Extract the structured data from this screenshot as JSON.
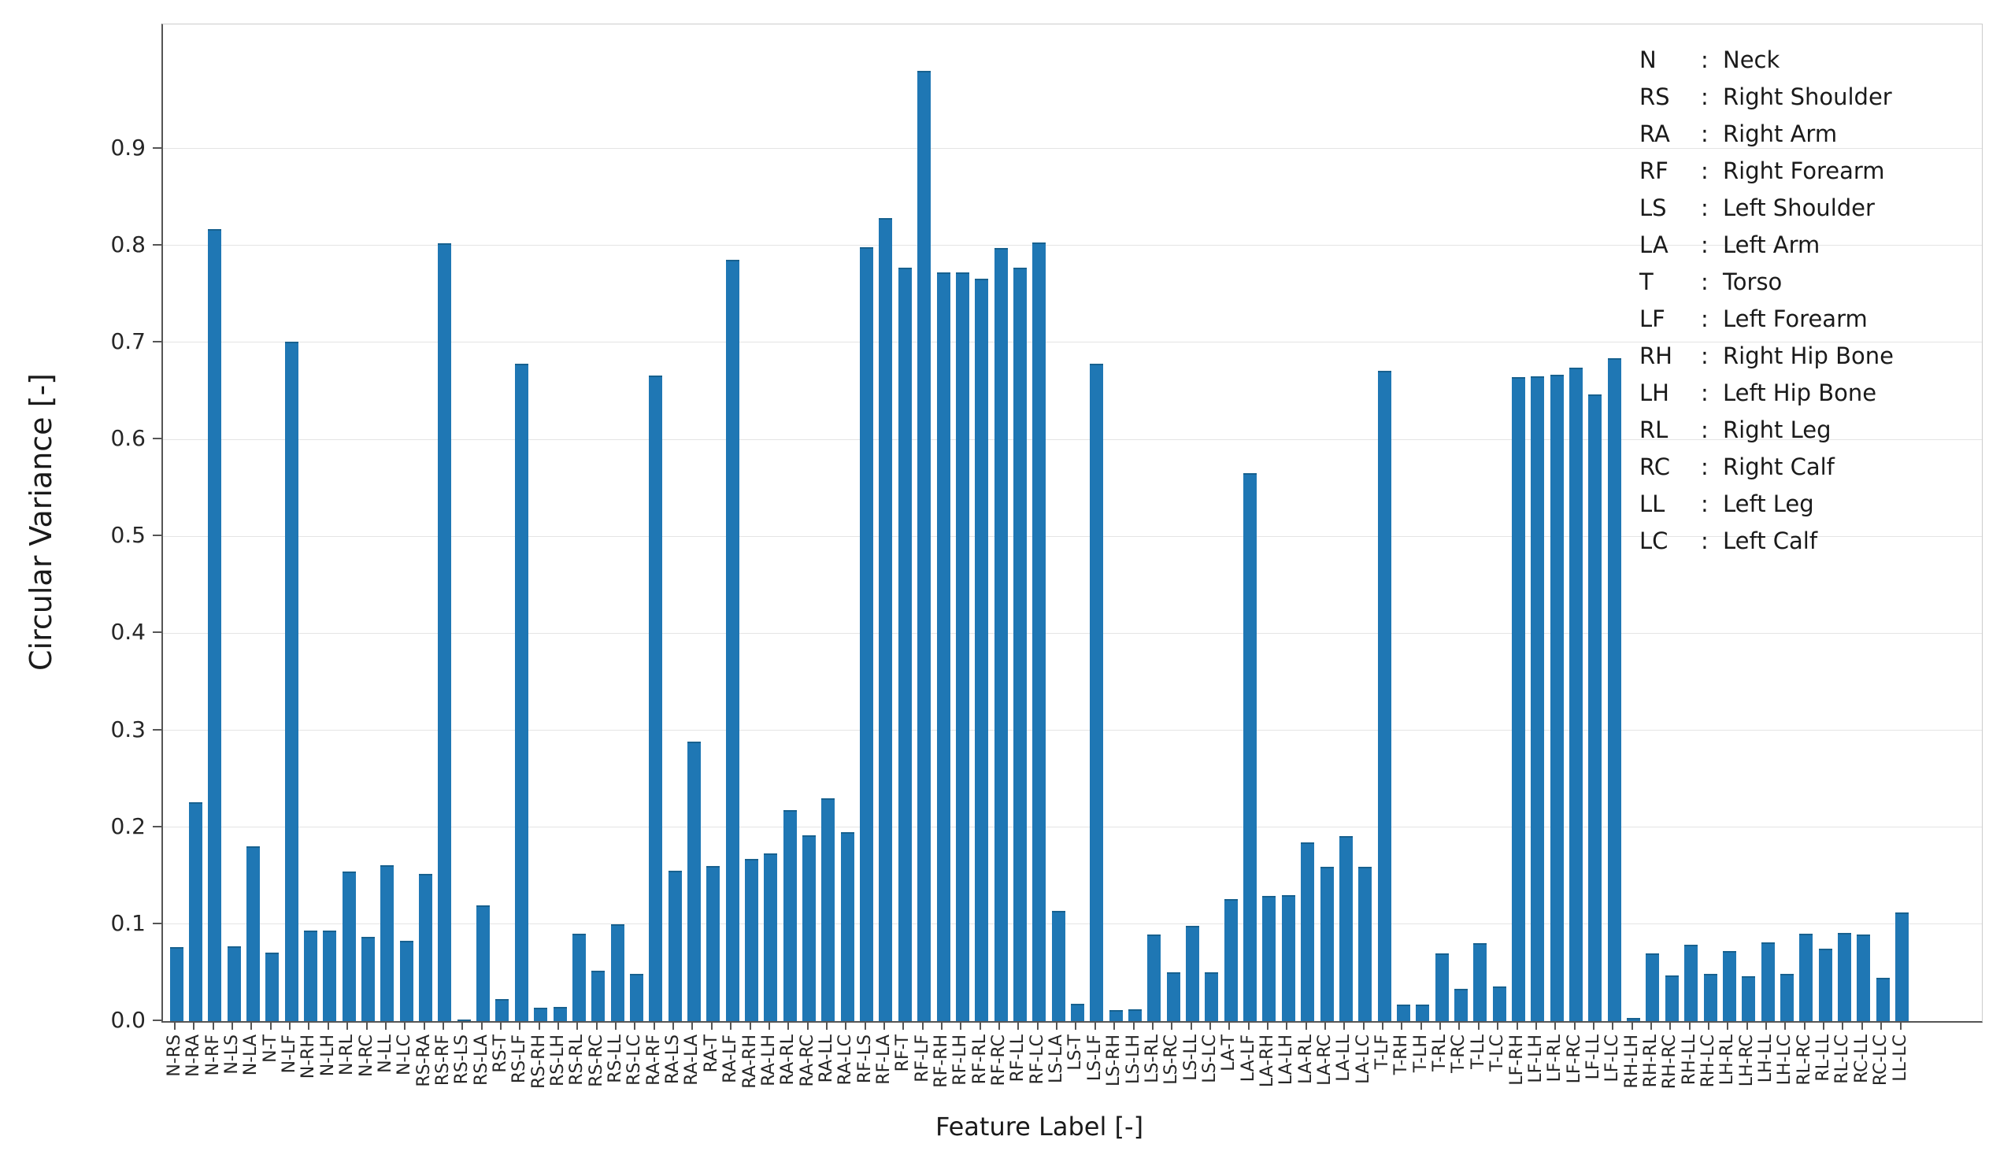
{
  "figure": {
    "title": "",
    "bar_color": "#1f77b4",
    "grid_color": "#e4e4e4",
    "ytick_labels": [
      "0.0",
      "0.1",
      "0.2",
      "0.3",
      "0.4",
      "0.5",
      "0.6",
      "0.7",
      "0.8",
      "0.9"
    ]
  },
  "legend": {
    "entries": [
      {
        "abbr": "N",
        "colon": ":",
        "name": "Neck"
      },
      {
        "abbr": "RS",
        "colon": ":",
        "name": "Right Shoulder"
      },
      {
        "abbr": "RA",
        "colon": ":",
        "name": "Right Arm"
      },
      {
        "abbr": "RF",
        "colon": ":",
        "name": "Right Forearm"
      },
      {
        "abbr": "LS",
        "colon": ":",
        "name": "Left Shoulder"
      },
      {
        "abbr": "LA",
        "colon": ":",
        "name": "Left Arm"
      },
      {
        "abbr": "T",
        "colon": ":",
        "name": "Torso"
      },
      {
        "abbr": "LF",
        "colon": ":",
        "name": "Left Forearm"
      },
      {
        "abbr": "RH",
        "colon": ":",
        "name": "Right Hip Bone"
      },
      {
        "abbr": "LH",
        "colon": ":",
        "name": "Left Hip Bone"
      },
      {
        "abbr": "RL",
        "colon": ":",
        "name": "Right Leg"
      },
      {
        "abbr": "RC",
        "colon": ":",
        "name": "Right Calf"
      },
      {
        "abbr": "LL",
        "colon": ":",
        "name": "Left Leg"
      },
      {
        "abbr": "LC",
        "colon": ":",
        "name": "Left Calf"
      }
    ]
  },
  "chart_data": {
    "type": "bar",
    "title": "",
    "xlabel": "Feature Label [-]",
    "ylabel": "Circular Variance [-]",
    "ylim": [
      0,
      1.028
    ],
    "ytick_step": 0.1,
    "grid": true,
    "legend_position": "upper right (text only, inside axes)",
    "categories": [
      "N-RS",
      "N-RA",
      "N-RF",
      "N-LS",
      "N-LA",
      "N-T",
      "N-LF",
      "N-RH",
      "N-LH",
      "N-RL",
      "N-RC",
      "N-LL",
      "N-LC",
      "RS-RA",
      "RS-RF",
      "RS-LS",
      "RS-LA",
      "RS-T",
      "RS-LF",
      "RS-RH",
      "RS-LH",
      "RS-RL",
      "RS-RC",
      "RS-LL",
      "RS-LC",
      "RA-RF",
      "RA-LS",
      "RA-LA",
      "RA-T",
      "RA-LF",
      "RA-RH",
      "RA-LH",
      "RA-RL",
      "RA-RC",
      "RA-LL",
      "RA-LC",
      "RF-LS",
      "RF-LA",
      "RF-T",
      "RF-LF",
      "RF-RH",
      "RF-LH",
      "RF-RL",
      "RF-RC",
      "RF-LL",
      "RF-LC",
      "LS-LA",
      "LS-T",
      "LS-LF",
      "LS-RH",
      "LS-LH",
      "LS-RL",
      "LS-RC",
      "LS-LL",
      "LS-LC",
      "LA-T",
      "LA-LF",
      "LA-RH",
      "LA-LH",
      "LA-RL",
      "LA-RC",
      "LA-LL",
      "LA-LC",
      "T-LF",
      "T-RH",
      "T-LH",
      "T-RL",
      "T-RC",
      "T-LL",
      "T-LC",
      "LF-RH",
      "LF-LH",
      "LF-RL",
      "LF-RC",
      "LF-LL",
      "LF-LC",
      "RH-LH",
      "RH-RL",
      "RH-RC",
      "RH-LL",
      "RH-LC",
      "LH-RL",
      "LH-RC",
      "LH-LL",
      "LH-LC",
      "RL-RC",
      "RL-LL",
      "RL-LC",
      "RC-LL",
      "RC-LC",
      "LL-LC"
    ],
    "values": [
      0.076,
      0.226,
      0.817,
      0.077,
      0.18,
      0.071,
      0.701,
      0.093,
      0.093,
      0.154,
      0.087,
      0.161,
      0.083,
      0.152,
      0.802,
      0.002,
      0.119,
      0.023,
      0.678,
      0.014,
      0.015,
      0.09,
      0.052,
      0.1,
      0.049,
      0.666,
      0.155,
      0.288,
      0.16,
      0.785,
      0.167,
      0.173,
      0.218,
      0.192,
      0.23,
      0.195,
      0.798,
      0.828,
      0.777,
      0.98,
      0.772,
      0.772,
      0.766,
      0.797,
      0.777,
      0.803,
      0.114,
      0.018,
      0.678,
      0.011,
      0.012,
      0.089,
      0.05,
      0.098,
      0.05,
      0.126,
      0.565,
      0.129,
      0.13,
      0.184,
      0.159,
      0.191,
      0.159,
      0.671,
      0.017,
      0.017,
      0.07,
      0.033,
      0.08,
      0.036,
      0.664,
      0.665,
      0.667,
      0.674,
      0.646,
      0.684,
      0.003,
      0.07,
      0.047,
      0.079,
      0.049,
      0.072,
      0.046,
      0.081,
      0.049,
      0.09,
      0.075,
      0.091,
      0.089,
      0.045,
      0.112
    ]
  }
}
